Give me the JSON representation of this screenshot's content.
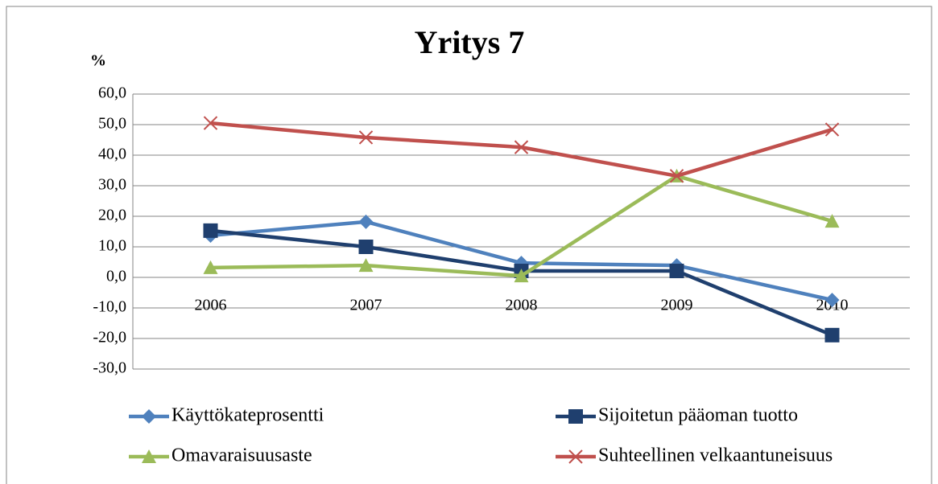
{
  "chart_data": {
    "type": "line",
    "title": "Yritys 7",
    "y_label": "%",
    "categories": [
      "2006",
      "2007",
      "2008",
      "2009",
      "2010"
    ],
    "series": [
      {
        "name": "Käyttökateprosentti",
        "color": "#4f81bd",
        "marker": "diamond",
        "values": [
          13.7,
          18.2,
          4.7,
          3.9,
          -7.4
        ]
      },
      {
        "name": "Sijoitetun pääoman tuotto",
        "color": "#1f3f6e",
        "marker": "square",
        "values": [
          15.3,
          10.0,
          2.1,
          2.1,
          -18.9
        ]
      },
      {
        "name": "Omavaraisuusaste",
        "color": "#9bbb59",
        "marker": "triangle",
        "values": [
          3.2,
          3.9,
          0.5,
          33.2,
          18.4
        ]
      },
      {
        "name": "Suhteellinen velkaantuneisuus",
        "color": "#c0504d",
        "marker": "x",
        "values": [
          50.5,
          45.8,
          42.6,
          33.2,
          48.4
        ]
      }
    ],
    "ylim": [
      -30,
      60
    ],
    "yticks": [
      {
        "value": -30,
        "label": "-30,0"
      },
      {
        "value": -20,
        "label": "-20,0"
      },
      {
        "value": -10,
        "label": "-10,0"
      },
      {
        "value": 0,
        "label": "0,0"
      },
      {
        "value": 10,
        "label": "10,0"
      },
      {
        "value": 20,
        "label": "20,0"
      },
      {
        "value": 30,
        "label": "30,0"
      },
      {
        "value": 40,
        "label": "40,0"
      },
      {
        "value": 50,
        "label": "50,0"
      },
      {
        "value": 60,
        "label": "60,0"
      }
    ],
    "grid": true,
    "legend": "bottom"
  }
}
